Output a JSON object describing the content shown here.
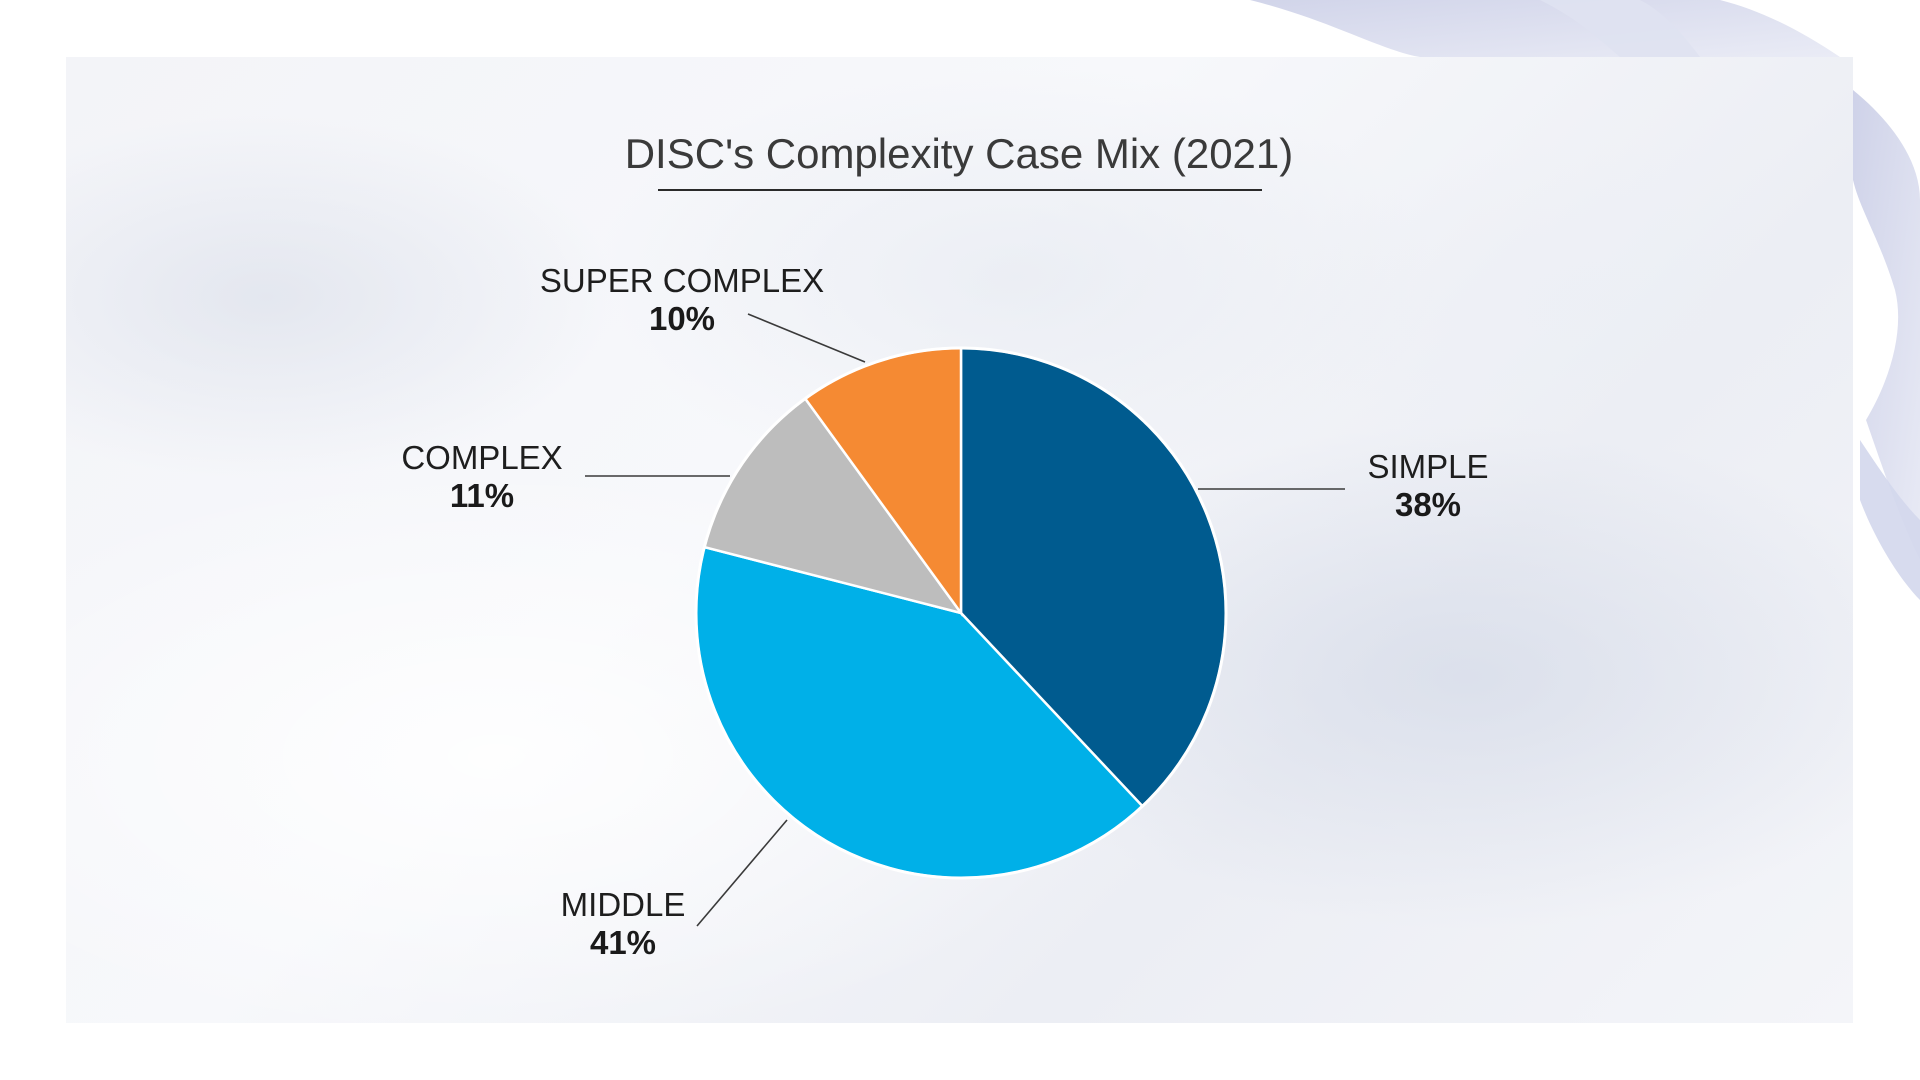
{
  "chart_data": {
    "type": "pie",
    "title": "DISC's Complexity Case Mix (2021)",
    "slices": [
      {
        "label": "SIMPLE",
        "value": 38,
        "value_label": "38%",
        "color": "#005b8f"
      },
      {
        "label": "MIDDLE",
        "value": 41,
        "value_label": "41%",
        "color": "#00b0e8"
      },
      {
        "label": "COMPLEX",
        "value": 11,
        "value_label": "11%",
        "color": "#bdbdbd"
      },
      {
        "label": "SUPER COMPLEX",
        "value": 10,
        "value_label": "10%",
        "color": "#f58a33"
      }
    ],
    "start_angle_deg": 0,
    "direction": "clockwise",
    "legend": "none",
    "labels": "outside-with-leader-lines"
  },
  "colors": {
    "background": "#ffffff",
    "title_text": "#3a3a3a",
    "label_text": "#1e1e1e"
  }
}
